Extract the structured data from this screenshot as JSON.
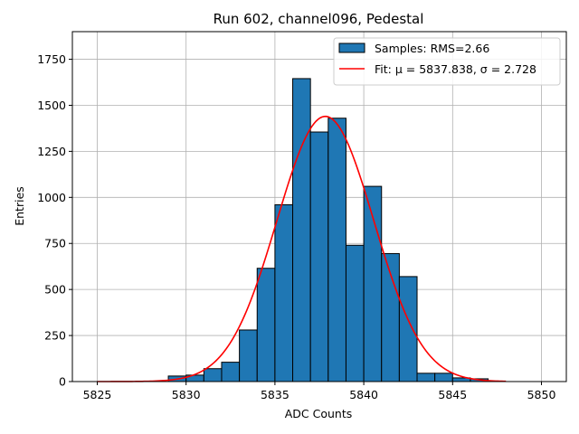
{
  "chart_data": {
    "type": "bar",
    "title": "Run 602, channel096, Pedestal",
    "xlabel": "ADC Counts",
    "ylabel": "Entries",
    "xlim": [
      5823.6,
      5851.4
    ],
    "ylim": [
      0,
      1900
    ],
    "xticks": [
      5825,
      5830,
      5835,
      5840,
      5845,
      5850
    ],
    "xtick_labels": [
      "5825",
      "5830",
      "5835",
      "5840",
      "5845",
      "5850"
    ],
    "yticks": [
      0,
      250,
      500,
      750,
      1000,
      1250,
      1500,
      1750
    ],
    "ytick_labels": [
      "0",
      "250",
      "500",
      "750",
      "1000",
      "1250",
      "1500",
      "1750"
    ],
    "grid": true,
    "legend_position": "top-right",
    "histogram": {
      "name": "Samples: RMS=2.66",
      "color": "#1f77b4",
      "edge_color": "#000000",
      "bin_edges": [
        5829.0,
        5830.0,
        5831.0,
        5832.0,
        5833.0,
        5834.0,
        5835.0,
        5836.0,
        5837.0,
        5838.0,
        5839.0,
        5840.0,
        5841.0,
        5842.0,
        5843.0,
        5844.0,
        5845.0,
        5846.0,
        5847.0
      ],
      "counts": [
        30,
        35,
        70,
        105,
        280,
        615,
        960,
        1645,
        1355,
        1430,
        740,
        1060,
        695,
        570,
        45,
        45,
        20,
        15
      ]
    },
    "fit": {
      "name": "Fit: μ = 5837.838, σ = 2.728",
      "color": "#ff0000",
      "mu": 5837.838,
      "sigma": 2.728,
      "amplitude": 1440,
      "x_range": [
        5825,
        5848
      ]
    }
  }
}
